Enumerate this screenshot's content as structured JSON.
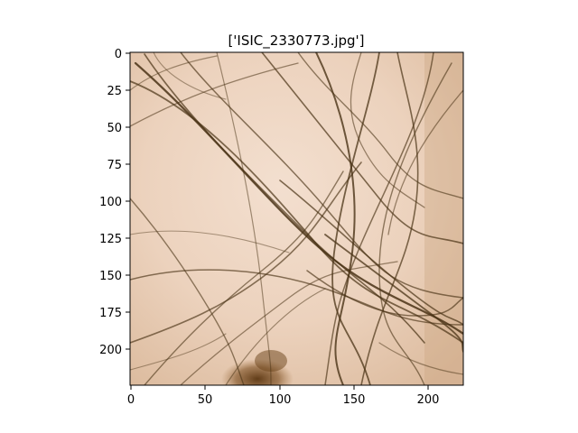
{
  "figure": {
    "title": "['ISIC_2330773.jpg']"
  },
  "image": {
    "subject": "dermoscopy skin image with dense dark hair strands",
    "skin_color": "#ecd2bd",
    "hair_color": "#4a3316"
  },
  "axes": {
    "x_ticks": [
      "0",
      "50",
      "100",
      "150",
      "200"
    ],
    "y_ticks": [
      "0",
      "25",
      "50",
      "75",
      "100",
      "125",
      "150",
      "175",
      "200"
    ],
    "x_range": [
      0,
      224
    ],
    "y_range": [
      0,
      224
    ]
  }
}
